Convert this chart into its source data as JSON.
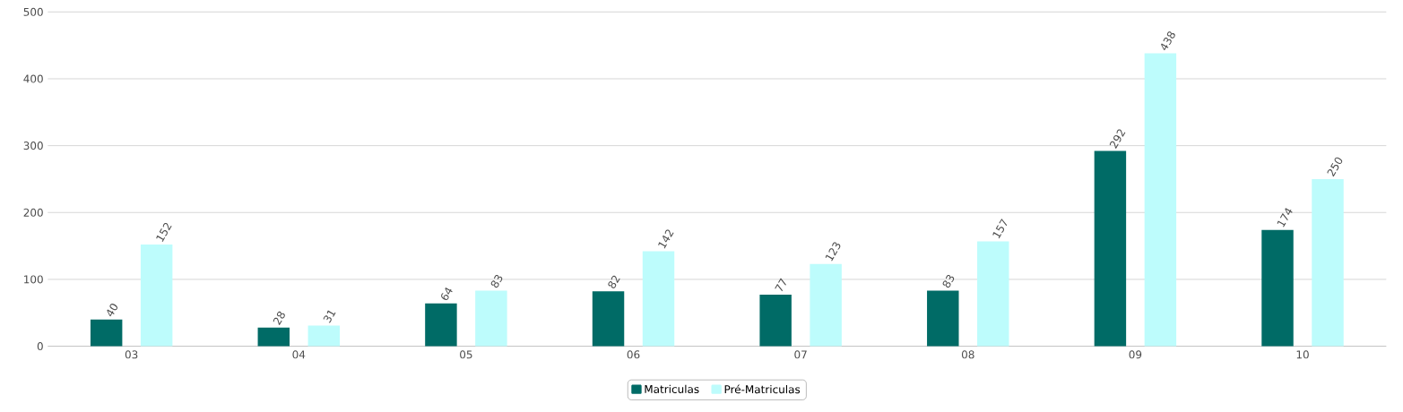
{
  "chart_data": {
    "type": "bar",
    "categories": [
      "03",
      "04",
      "05",
      "06",
      "07",
      "08",
      "09",
      "10"
    ],
    "series": [
      {
        "name": "Matriculas",
        "color": "#006b66",
        "values": [
          40,
          28,
          64,
          82,
          77,
          83,
          292,
          174
        ]
      },
      {
        "name": "Pré-Matriculas",
        "color": "#bdfcfc",
        "values": [
          152,
          31,
          83,
          142,
          123,
          157,
          438,
          250
        ]
      }
    ],
    "ylim": [
      0,
      500
    ],
    "yticks": [
      0,
      100,
      200,
      300,
      400,
      500
    ],
    "grid": "y",
    "legend": "bottom",
    "data_labels": true
  }
}
